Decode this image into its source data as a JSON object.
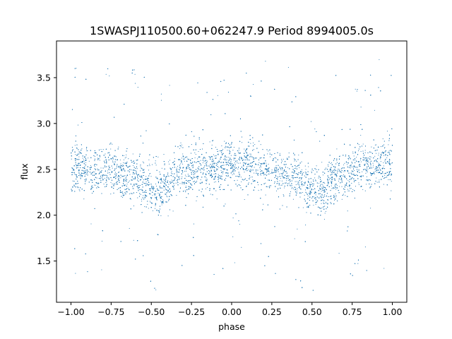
{
  "chart_data": {
    "type": "scatter",
    "title": "1SWASPJ110500.60+062247.9 Period 8994005.0s",
    "xlabel": "phase",
    "ylabel": "flux",
    "xlim": [
      -1.09,
      1.09
    ],
    "ylim": [
      1.05,
      3.9
    ],
    "xticks": [
      -1.0,
      -0.75,
      -0.5,
      -0.25,
      0.0,
      0.25,
      0.5,
      0.75,
      1.0
    ],
    "xtick_labels": [
      "−1.00",
      "−0.75",
      "−0.50",
      "−0.25",
      "0.00",
      "0.25",
      "0.50",
      "0.75",
      "1.00"
    ],
    "yticks": [
      1.5,
      2.0,
      2.5,
      3.0,
      3.5
    ],
    "ytick_labels": [
      "1.5",
      "2.0",
      "2.5",
      "3.0",
      "3.5"
    ],
    "grid": false,
    "marker_color": "#1f77b4",
    "profile": {
      "x": [
        -1.0,
        -0.9,
        -0.75,
        -0.6,
        -0.5,
        -0.45,
        -0.35,
        -0.25,
        -0.1,
        0.0,
        0.1,
        0.25,
        0.35,
        0.5,
        0.55,
        0.65,
        0.75,
        0.9,
        1.0
      ],
      "y": [
        2.55,
        2.5,
        2.5,
        2.4,
        2.3,
        2.25,
        2.45,
        2.5,
        2.5,
        2.58,
        2.55,
        2.5,
        2.45,
        2.3,
        2.25,
        2.4,
        2.5,
        2.55,
        2.58
      ]
    }
  }
}
